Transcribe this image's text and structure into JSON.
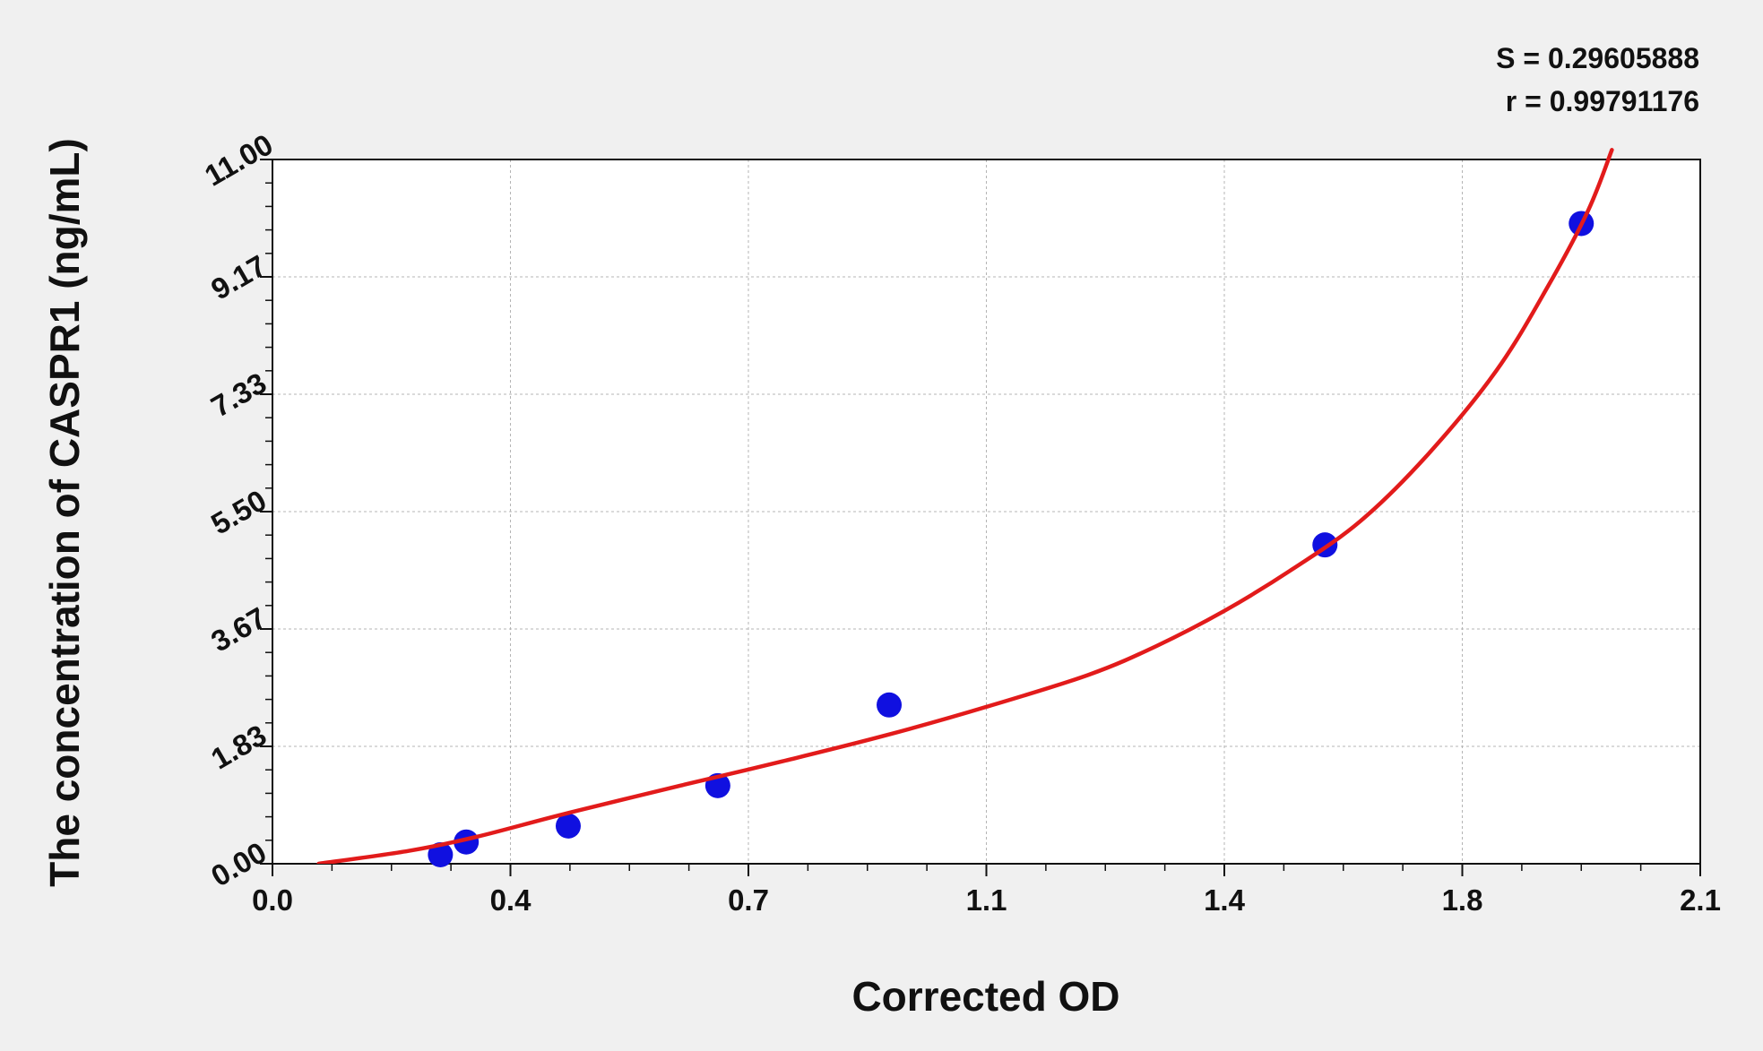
{
  "chart_data": {
    "type": "scatter",
    "title": "",
    "xlabel": "Corrected OD",
    "ylabel": "The concentration of CASPR1 (ng/mL)",
    "xlim": [
      0.0,
      2.1
    ],
    "ylim": [
      0.0,
      11.0
    ],
    "x_ticks": [
      "0.0",
      "0.4",
      "0.7",
      "1.1",
      "1.4",
      "1.8",
      "2.1"
    ],
    "y_ticks": [
      "0.00",
      "1.83",
      "3.67",
      "5.50",
      "7.33",
      "9.17",
      "11.00"
    ],
    "grid": true,
    "stats": [
      "S = 0.29605888",
      "r = 0.99791176"
    ],
    "series": [
      {
        "type": "scatter",
        "color": "#1010e0",
        "points": [
          {
            "x": 0.247,
            "y": 0.14
          },
          {
            "x": 0.285,
            "y": 0.34
          },
          {
            "x": 0.435,
            "y": 0.59
          },
          {
            "x": 0.655,
            "y": 1.22
          },
          {
            "x": 0.907,
            "y": 2.48
          },
          {
            "x": 1.548,
            "y": 4.98
          },
          {
            "x": 1.925,
            "y": 10.0
          }
        ]
      },
      {
        "type": "line",
        "color": "#e21b1b",
        "points": [
          {
            "x": 0.068,
            "y": 0.0
          },
          {
            "x": 0.2,
            "y": 0.2
          },
          {
            "x": 0.3,
            "y": 0.42
          },
          {
            "x": 0.43,
            "y": 0.78
          },
          {
            "x": 0.6,
            "y": 1.22
          },
          {
            "x": 0.75,
            "y": 1.6
          },
          {
            "x": 0.9,
            "y": 2.0
          },
          {
            "x": 1.05,
            "y": 2.45
          },
          {
            "x": 1.2,
            "y": 2.95
          },
          {
            "x": 1.3,
            "y": 3.4
          },
          {
            "x": 1.4,
            "y": 3.95
          },
          {
            "x": 1.5,
            "y": 4.6
          },
          {
            "x": 1.6,
            "y": 5.35
          },
          {
            "x": 1.7,
            "y": 6.4
          },
          {
            "x": 1.8,
            "y": 7.7
          },
          {
            "x": 1.875,
            "y": 9.0
          },
          {
            "x": 1.935,
            "y": 10.2
          },
          {
            "x": 1.97,
            "y": 11.15
          }
        ]
      }
    ]
  }
}
